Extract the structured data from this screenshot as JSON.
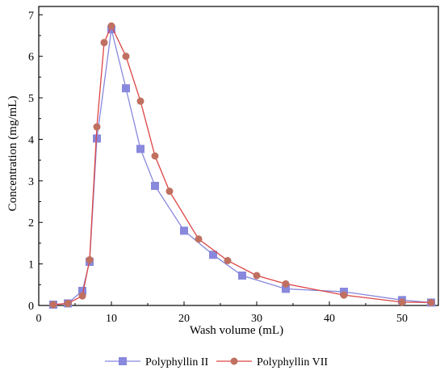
{
  "chart_data": {
    "type": "line",
    "xlabel": "Wash volume (mL)",
    "ylabel": "Concentration (mg/mL)",
    "xlim": [
      0,
      55
    ],
    "ylim": [
      0,
      7.2
    ],
    "x_ticks": [
      0,
      10,
      20,
      30,
      40,
      50
    ],
    "y_ticks": [
      0,
      1,
      2,
      3,
      4,
      5,
      6,
      7
    ],
    "grid": false,
    "legend_position": "bottom",
    "series": [
      {
        "name": "Polyphyllin II",
        "color": "#8888dd",
        "marker": "square",
        "x": [
          2,
          4,
          6,
          7,
          8,
          10,
          12,
          14,
          16,
          20,
          24,
          28,
          34,
          42,
          50,
          54
        ],
        "y": [
          0.02,
          0.05,
          0.35,
          1.05,
          4.02,
          6.65,
          5.23,
          3.77,
          2.88,
          1.8,
          1.22,
          0.72,
          0.4,
          0.33,
          0.13,
          0.07
        ]
      },
      {
        "name": "Polyphyllin VII",
        "color": "#dd4444",
        "marker_color": "#c07060",
        "marker": "circle",
        "x": [
          2,
          4,
          6,
          7,
          8,
          9,
          10,
          12,
          14,
          16,
          18,
          22,
          26,
          30,
          34,
          42,
          50,
          54
        ],
        "y": [
          0.02,
          0.05,
          0.23,
          1.1,
          4.3,
          6.33,
          6.73,
          6.0,
          4.92,
          3.6,
          2.75,
          1.6,
          1.08,
          0.72,
          0.52,
          0.25,
          0.08,
          0.07
        ]
      }
    ]
  }
}
